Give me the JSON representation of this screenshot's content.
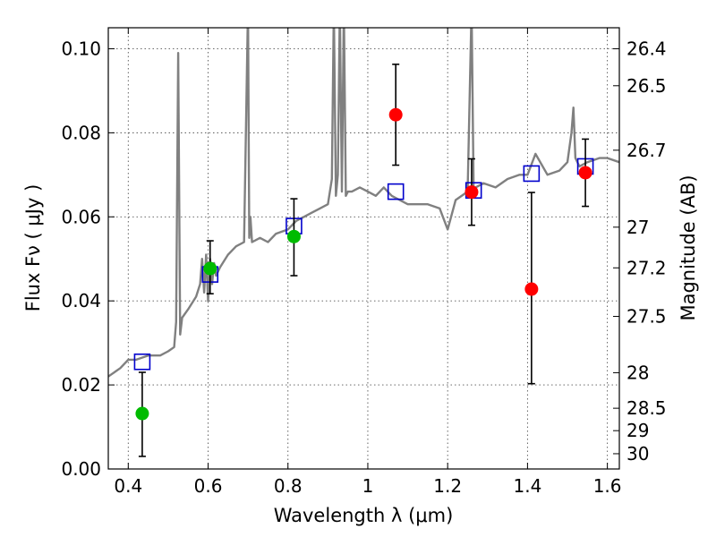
{
  "chart_data": {
    "type": "scatter",
    "xlabel": "Wavelength  λ (μm)",
    "ylabel": "Flux  Fν  ( μJy )",
    "y2label": "Magnitude (AB)",
    "xlim": [
      0.35,
      1.63
    ],
    "ylim": [
      0.0,
      0.105
    ],
    "grid": true,
    "xticks": [
      {
        "value": 0.4,
        "label": "0.4"
      },
      {
        "value": 0.6,
        "label": "0.6"
      },
      {
        "value": 0.8,
        "label": "0.8"
      },
      {
        "value": 1.0,
        "label": "1"
      },
      {
        "value": 1.2,
        "label": "1.2"
      },
      {
        "value": 1.4,
        "label": "1.4"
      },
      {
        "value": 1.6,
        "label": "1.6"
      }
    ],
    "yticks": [
      {
        "value": 0.0,
        "label": "0.00"
      },
      {
        "value": 0.02,
        "label": "0.02"
      },
      {
        "value": 0.04,
        "label": "0.04"
      },
      {
        "value": 0.06,
        "label": "0.06"
      },
      {
        "value": 0.08,
        "label": "0.08"
      },
      {
        "value": 0.1,
        "label": "0.10"
      }
    ],
    "y2ticks": [
      {
        "value": 26.4,
        "label": "26.4"
      },
      {
        "value": 26.5,
        "label": "26.5"
      },
      {
        "value": 26.7,
        "label": "26.7"
      },
      {
        "value": 27.0,
        "label": "27"
      },
      {
        "value": 27.2,
        "label": "27.2"
      },
      {
        "value": 27.5,
        "label": "27.5"
      },
      {
        "value": 28.0,
        "label": "28"
      },
      {
        "value": 28.5,
        "label": "28.5"
      },
      {
        "value": 29.0,
        "label": "29"
      },
      {
        "value": 30.0,
        "label": "30"
      }
    ],
    "colors": {
      "spectrum": "#808080",
      "model": "#0000cc",
      "green": "#00bb00",
      "red": "#ff0000",
      "errorbar": "#000000"
    },
    "spectrum": {
      "x": [
        0.35,
        0.38,
        0.4,
        0.42,
        0.45,
        0.48,
        0.5,
        0.515,
        0.52,
        0.525,
        0.53,
        0.535,
        0.55,
        0.57,
        0.58,
        0.585,
        0.59,
        0.595,
        0.6,
        0.605,
        0.61,
        0.615,
        0.62,
        0.63,
        0.65,
        0.67,
        0.69,
        0.7,
        0.703,
        0.706,
        0.71,
        0.73,
        0.75,
        0.77,
        0.8,
        0.82,
        0.84,
        0.86,
        0.88,
        0.9,
        0.91,
        0.915,
        0.92,
        0.925,
        0.93,
        0.935,
        0.94,
        0.945,
        0.95,
        0.96,
        0.98,
        1.0,
        1.02,
        1.04,
        1.06,
        1.08,
        1.1,
        1.12,
        1.15,
        1.18,
        1.2,
        1.22,
        1.25,
        1.26,
        1.265,
        1.27,
        1.29,
        1.32,
        1.35,
        1.38,
        1.4,
        1.42,
        1.45,
        1.48,
        1.5,
        1.51,
        1.515,
        1.52,
        1.53,
        1.55,
        1.58,
        1.6,
        1.63
      ],
      "y": [
        0.022,
        0.024,
        0.026,
        0.026,
        0.027,
        0.027,
        0.028,
        0.029,
        0.035,
        0.099,
        0.032,
        0.036,
        0.038,
        0.041,
        0.044,
        0.05,
        0.042,
        0.051,
        0.04,
        0.05,
        0.044,
        0.049,
        0.046,
        0.048,
        0.051,
        0.053,
        0.054,
        0.11,
        0.055,
        0.06,
        0.054,
        0.055,
        0.054,
        0.056,
        0.057,
        0.059,
        0.06,
        0.061,
        0.062,
        0.063,
        0.069,
        0.11,
        0.065,
        0.07,
        0.11,
        0.066,
        0.11,
        0.065,
        0.066,
        0.066,
        0.067,
        0.066,
        0.065,
        0.067,
        0.065,
        0.064,
        0.063,
        0.063,
        0.063,
        0.062,
        0.057,
        0.064,
        0.066,
        0.11,
        0.066,
        0.067,
        0.068,
        0.067,
        0.069,
        0.07,
        0.07,
        0.075,
        0.07,
        0.071,
        0.073,
        0.08,
        0.086,
        0.074,
        0.072,
        0.073,
        0.074,
        0.074,
        0.073
      ]
    },
    "model_points": {
      "x": [
        0.435,
        0.605,
        0.815,
        1.07,
        1.265,
        1.41,
        1.545
      ],
      "y": [
        0.0255,
        0.0463,
        0.0578,
        0.066,
        0.0663,
        0.0703,
        0.072
      ]
    },
    "observed_green": [
      {
        "x": 0.435,
        "y": 0.0132,
        "err_low": 0.0102,
        "err_high": 0.0098
      },
      {
        "x": 0.605,
        "y": 0.0477,
        "err_low": 0.006,
        "err_high": 0.0066
      },
      {
        "x": 0.815,
        "y": 0.0553,
        "err_low": 0.0093,
        "err_high": 0.009
      }
    ],
    "observed_red": [
      {
        "x": 1.07,
        "y": 0.0843,
        "err_low": 0.012,
        "err_high": 0.012
      },
      {
        "x": 1.26,
        "y": 0.0659,
        "err_low": 0.0079,
        "err_high": 0.0079
      },
      {
        "x": 1.41,
        "y": 0.0428,
        "err_low": 0.0225,
        "err_high": 0.023
      },
      {
        "x": 1.545,
        "y": 0.0705,
        "err_low": 0.008,
        "err_high": 0.008
      }
    ]
  }
}
